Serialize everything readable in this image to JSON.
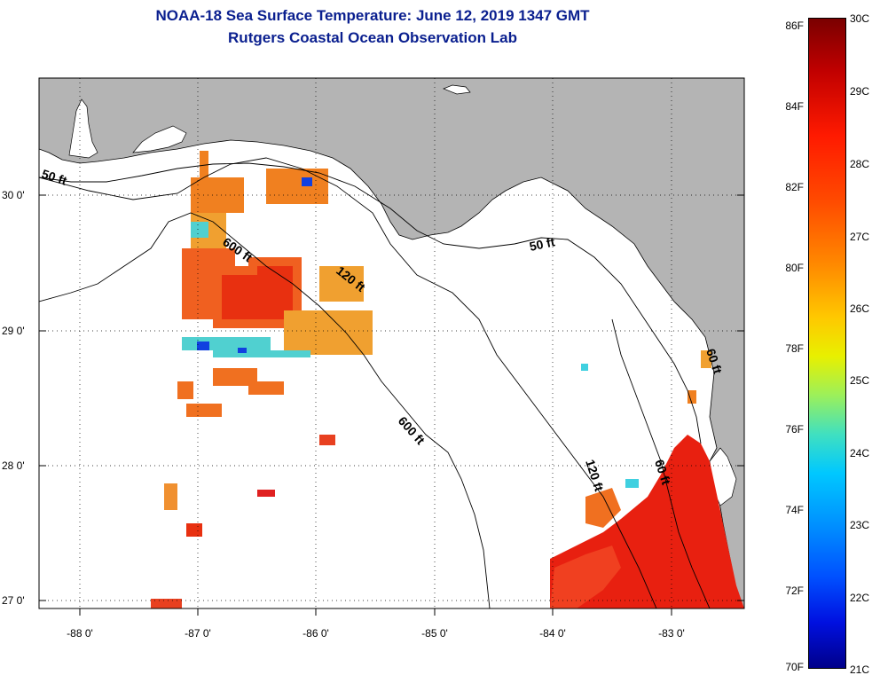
{
  "header": {
    "title": "NOAA-18 Sea Surface Temperature:  June 12, 2019 1347 GMT",
    "subtitle": "Rutgers Coastal Ocean Observation Lab"
  },
  "map": {
    "lon_range": [
      -88.35,
      -82.4
    ],
    "lat_range": [
      26.95,
      30.92
    ],
    "lat_ticks": [
      "30 0'",
      "29 0'",
      "28 0'",
      "27 0'"
    ],
    "lon_ticks": [
      "-88 0'",
      "-87 0'",
      "-86 0'",
      "-85 0'",
      "-84 0'",
      "-83 0'"
    ],
    "land_color": "#b4b4b4",
    "water_color": "#ffffff",
    "contour_labels": [
      "50 ft",
      "600 ft",
      "120 ft",
      "50 ft",
      "600 ft",
      "120 ft",
      "60 ft",
      "60 ft"
    ]
  },
  "colorbar": {
    "fahrenheit_labels": [
      "86F",
      "84F",
      "82F",
      "80F",
      "78F",
      "76F",
      "74F",
      "72F",
      "70F"
    ],
    "celsius_labels": [
      "30C",
      "29C",
      "28C",
      "27C",
      "26C",
      "25C",
      "24C",
      "23C",
      "22C",
      "21C"
    ],
    "range_c": [
      21,
      30
    ]
  }
}
